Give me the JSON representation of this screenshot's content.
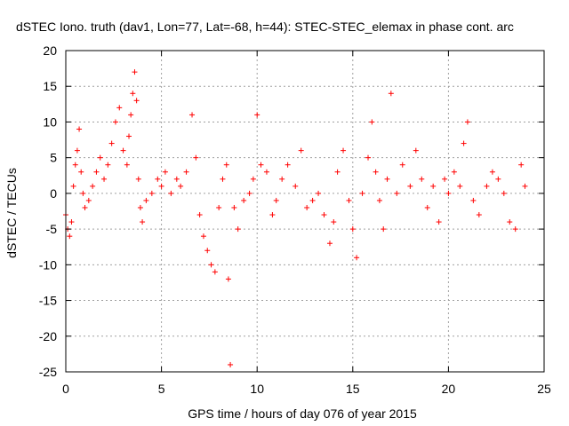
{
  "chart_data": {
    "type": "scatter",
    "title": "dSTEC Iono. truth (dav1, Lon=77, Lat=-68, h=44): STEC-STEC_elemax in phase cont. arc",
    "xlabel": "GPS time / hours of day 076 of year 2015",
    "ylabel": "dSTEC  / TECUs",
    "xlim": [
      0,
      25
    ],
    "ylim": [
      -25,
      20
    ],
    "xticks": [
      0,
      5,
      10,
      15,
      20,
      25
    ],
    "yticks": [
      -25,
      -20,
      -15,
      -10,
      -5,
      0,
      5,
      10,
      15,
      20
    ],
    "grid": true,
    "legend": "none",
    "marker": "+",
    "color": "#ff0000",
    "series": [
      {
        "name": "dSTEC",
        "x": [
          0.0,
          0.1,
          0.2,
          0.3,
          0.4,
          0.5,
          0.6,
          0.7,
          0.8,
          0.9,
          1.0,
          1.2,
          1.4,
          1.6,
          1.8,
          2.0,
          2.2,
          2.4,
          2.6,
          2.8,
          3.0,
          3.2,
          3.3,
          3.4,
          3.5,
          3.6,
          3.7,
          3.8,
          3.9,
          4.0,
          4.2,
          4.5,
          4.8,
          5.0,
          5.2,
          5.5,
          5.8,
          6.0,
          6.3,
          6.6,
          6.8,
          7.0,
          7.2,
          7.4,
          7.6,
          7.8,
          8.0,
          8.2,
          8.4,
          8.5,
          8.6,
          8.8,
          9.0,
          9.3,
          9.6,
          9.8,
          10.0,
          10.2,
          10.5,
          10.8,
          11.0,
          11.3,
          11.6,
          12.0,
          12.3,
          12.6,
          12.9,
          13.2,
          13.5,
          13.8,
          14.0,
          14.2,
          14.5,
          14.8,
          15.0,
          15.2,
          15.5,
          15.8,
          16.0,
          16.2,
          16.4,
          16.6,
          16.8,
          17.0,
          17.3,
          17.6,
          18.0,
          18.3,
          18.6,
          18.9,
          19.2,
          19.5,
          19.8,
          20.0,
          20.3,
          20.6,
          20.8,
          21.0,
          21.3,
          21.6,
          22.0,
          22.3,
          22.6,
          22.9,
          23.2,
          23.5,
          23.8,
          24.0
        ],
        "y": [
          -3,
          -5,
          -6,
          -4,
          1,
          4,
          6,
          9,
          3,
          0,
          -2,
          -1,
          1,
          3,
          5,
          2,
          4,
          7,
          10,
          12,
          6,
          4,
          8,
          11,
          14,
          17,
          13,
          2,
          -2,
          -4,
          -1,
          0,
          2,
          1,
          3,
          0,
          2,
          1,
          3,
          11,
          5,
          -3,
          -6,
          -8,
          -10,
          -11,
          -2,
          2,
          4,
          -12,
          -24,
          -2,
          -5,
          -1,
          0,
          2,
          11,
          4,
          3,
          -3,
          -1,
          2,
          4,
          1,
          6,
          -2,
          -1,
          0,
          -3,
          -7,
          -4,
          3,
          6,
          -1,
          -5,
          -9,
          0,
          5,
          10,
          3,
          -1,
          -5,
          2,
          14,
          0,
          4,
          1,
          6,
          2,
          -2,
          1,
          -4,
          2,
          0,
          3,
          1,
          7,
          10,
          -1,
          -3,
          1,
          3,
          2,
          0,
          -4,
          -5,
          4,
          1
        ]
      }
    ]
  }
}
